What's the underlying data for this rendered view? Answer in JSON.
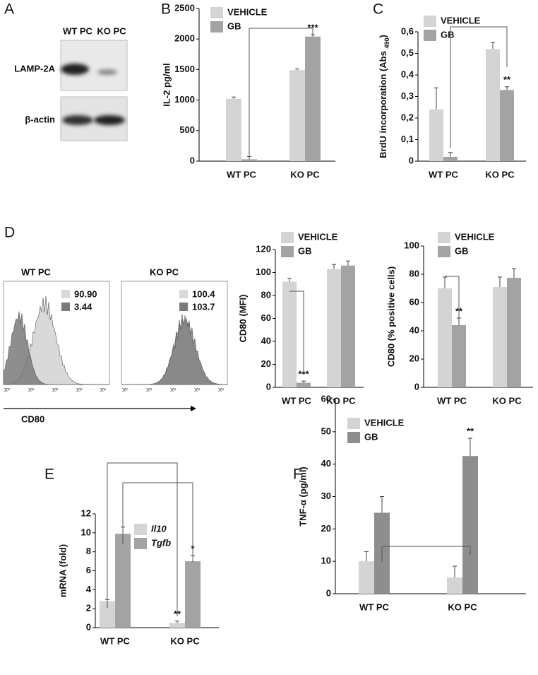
{
  "panel_labels": [
    "A",
    "B",
    "C",
    "D",
    "E",
    "F"
  ],
  "blot": {
    "columns": [
      "WT PC",
      "KO PC"
    ],
    "rows": [
      "LAMP-2A",
      "β-actin"
    ]
  },
  "histograms": {
    "xlabel": "CD80",
    "xticks": [
      "10⁰",
      "10¹",
      "10²",
      "10³",
      "10⁴"
    ],
    "panels": [
      {
        "title": "WT PC",
        "legend": [
          "90.90",
          "3.44"
        ]
      },
      {
        "title": "KO PC",
        "legend": [
          "100.4",
          "103.7"
        ]
      }
    ]
  },
  "chart_data": [
    {
      "type": "bar",
      "ylabel": "IL-2 pg/ml",
      "categories": [
        "WT PC",
        "KO PC"
      ],
      "series": [
        {
          "name": "VEHICLE",
          "color": "#d4d4d4",
          "values": [
            1020,
            1490
          ],
          "errors": [
            30,
            20
          ],
          "significance": [
            null,
            null
          ]
        },
        {
          "name": "GB",
          "color": "#a3a3a3",
          "values": [
            30,
            2040
          ],
          "errors": [
            45,
            30
          ],
          "significance": [
            null,
            "***"
          ]
        }
      ],
      "ylim": [
        0,
        2500
      ],
      "yticks": [
        0,
        500,
        1000,
        1500,
        2000,
        2500
      ]
    },
    {
      "type": "bar",
      "ylabel": [
        "BrdU  incorporation (Abs ",
        "490",
        ")"
      ],
      "categories": [
        "WT PC",
        "KO PC"
      ],
      "series": [
        {
          "name": "VEHICLE",
          "color": "#d4d4d4",
          "values": [
            0.24,
            0.52
          ],
          "errors": [
            0.1,
            0.03
          ],
          "significance": [
            null,
            null
          ]
        },
        {
          "name": "GB",
          "color": "#a3a3a3",
          "values": [
            0.02,
            0.33
          ],
          "errors": [
            0.02,
            0.015
          ],
          "significance": [
            null,
            "**"
          ]
        }
      ],
      "ylim": [
        0,
        0.6
      ],
      "yticks": [
        0,
        {
          "value": 0.1,
          "label": "0,1"
        },
        {
          "value": 0.2,
          "label": "0,2"
        },
        {
          "value": 0.3,
          "label": "0,3"
        },
        {
          "value": 0.4,
          "label": "0,4"
        },
        {
          "value": 0.5,
          "label": "0,5"
        },
        {
          "value": 0.6,
          "label": "0,6"
        }
      ]
    },
    {
      "type": "bar",
      "ylabel": "CD80 (MFI)",
      "categories": [
        "WT PC",
        "KO PC"
      ],
      "series": [
        {
          "name": "VEHICLE",
          "color": "#d4d4d4",
          "values": [
            92,
            103
          ],
          "errors": [
            3,
            4
          ],
          "significance": [
            null,
            null
          ]
        },
        {
          "name": "GB",
          "color": "#a3a3a3",
          "values": [
            4,
            106
          ],
          "errors": [
            1.5,
            4
          ],
          "significance": [
            "***",
            null
          ]
        }
      ],
      "ylim": [
        0,
        120
      ],
      "yticks": [
        0,
        20,
        40,
        60,
        80,
        100,
        120
      ]
    },
    {
      "type": "bar",
      "ylabel": "CD80 (% positive cells)",
      "categories": [
        "WT PC",
        "KO PC"
      ],
      "series": [
        {
          "name": "VEHICLE",
          "color": "#d4d4d4",
          "values": [
            70,
            71
          ],
          "errors": [
            8,
            7
          ],
          "significance": [
            null,
            null
          ]
        },
        {
          "name": "GB",
          "color": "#a3a3a3",
          "values": [
            44,
            77.5
          ],
          "errors": [
            5,
            6.5
          ],
          "significance": [
            "**",
            null
          ]
        }
      ],
      "ylim": [
        0,
        100
      ],
      "yticks": [
        0,
        20,
        40,
        60,
        80,
        100
      ]
    },
    {
      "type": "bar",
      "ylabel": "mRNA (fold)",
      "categories": [
        "WT PC",
        "KO PC"
      ],
      "series": [
        {
          "name": "Il10",
          "color": "#d4d4d4",
          "values": [
            2.8,
            0.5
          ],
          "errors": [
            0.15,
            0.2
          ],
          "significance": [
            null,
            "**"
          ]
        },
        {
          "name": "Tgfb",
          "color": "#a3a3a3",
          "values": [
            9.9,
            7.0
          ],
          "errors": [
            0.7,
            0.6
          ],
          "significance": [
            null,
            "*"
          ]
        }
      ],
      "ylim": [
        0,
        12
      ],
      "yticks": [
        0,
        2,
        4,
        6,
        8,
        10,
        12
      ]
    },
    {
      "type": "bar",
      "ylabel": "TNF-α (pg/ml)",
      "categories": [
        "WT PC",
        "KO PC"
      ],
      "series": [
        {
          "name": "VEHICLE",
          "color": "#d4d4d4",
          "values": [
            10,
            5
          ],
          "errors": [
            3,
            3.5
          ],
          "significance": [
            null,
            null
          ]
        },
        {
          "name": "GB",
          "color": "#8e8e8e",
          "values": [
            25,
            42.5
          ],
          "errors": [
            5,
            5.5
          ],
          "significance": [
            null,
            "**"
          ]
        }
      ],
      "ylim": [
        0,
        60
      ],
      "yticks": [
        0,
        10,
        20,
        30,
        40,
        50,
        60
      ]
    }
  ]
}
